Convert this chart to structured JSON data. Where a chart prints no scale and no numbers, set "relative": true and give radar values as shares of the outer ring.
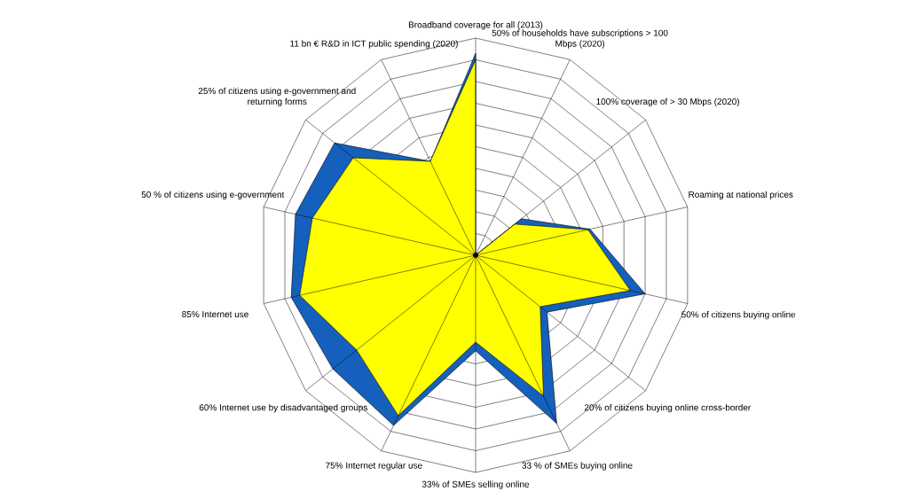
{
  "chart_data": {
    "type": "radar",
    "relative": true,
    "grid": true,
    "categories": [
      "Broadband coverage for all (2013)",
      "50% of households have subscriptions > 100 Mbps (2020)",
      "100% coverage of > 30 Mbps (2020)",
      "Roaming at national prices",
      "50% of citizens buying online",
      "20% of citizens buying online cross-border",
      "33 % of SMEs buying online",
      "33% of SMEs selling online",
      "75% Internet regular use",
      "60% Internet use by disadvantaged groups",
      "85% Internet use",
      "50 % of citizens using e-government",
      "25% of citizens using e-government and returning forms",
      "11 bn € R&D in ICT public spending (2020)"
    ],
    "series": [
      {
        "color": "#1560bd",
        "values": [
          0.93,
          0,
          0.27,
          0.54,
          0.8,
          0.42,
          0.86,
          0.44,
          0.87,
          0.84,
          0.87,
          0.85,
          0.83,
          0.48
        ]
      },
      {
        "color": "#ffff00",
        "values": [
          0.9,
          0,
          0.23,
          0.53,
          0.73,
          0.38,
          0.72,
          0.4,
          0.82,
          0.7,
          0.83,
          0.77,
          0.72,
          0.48
        ]
      }
    ]
  }
}
